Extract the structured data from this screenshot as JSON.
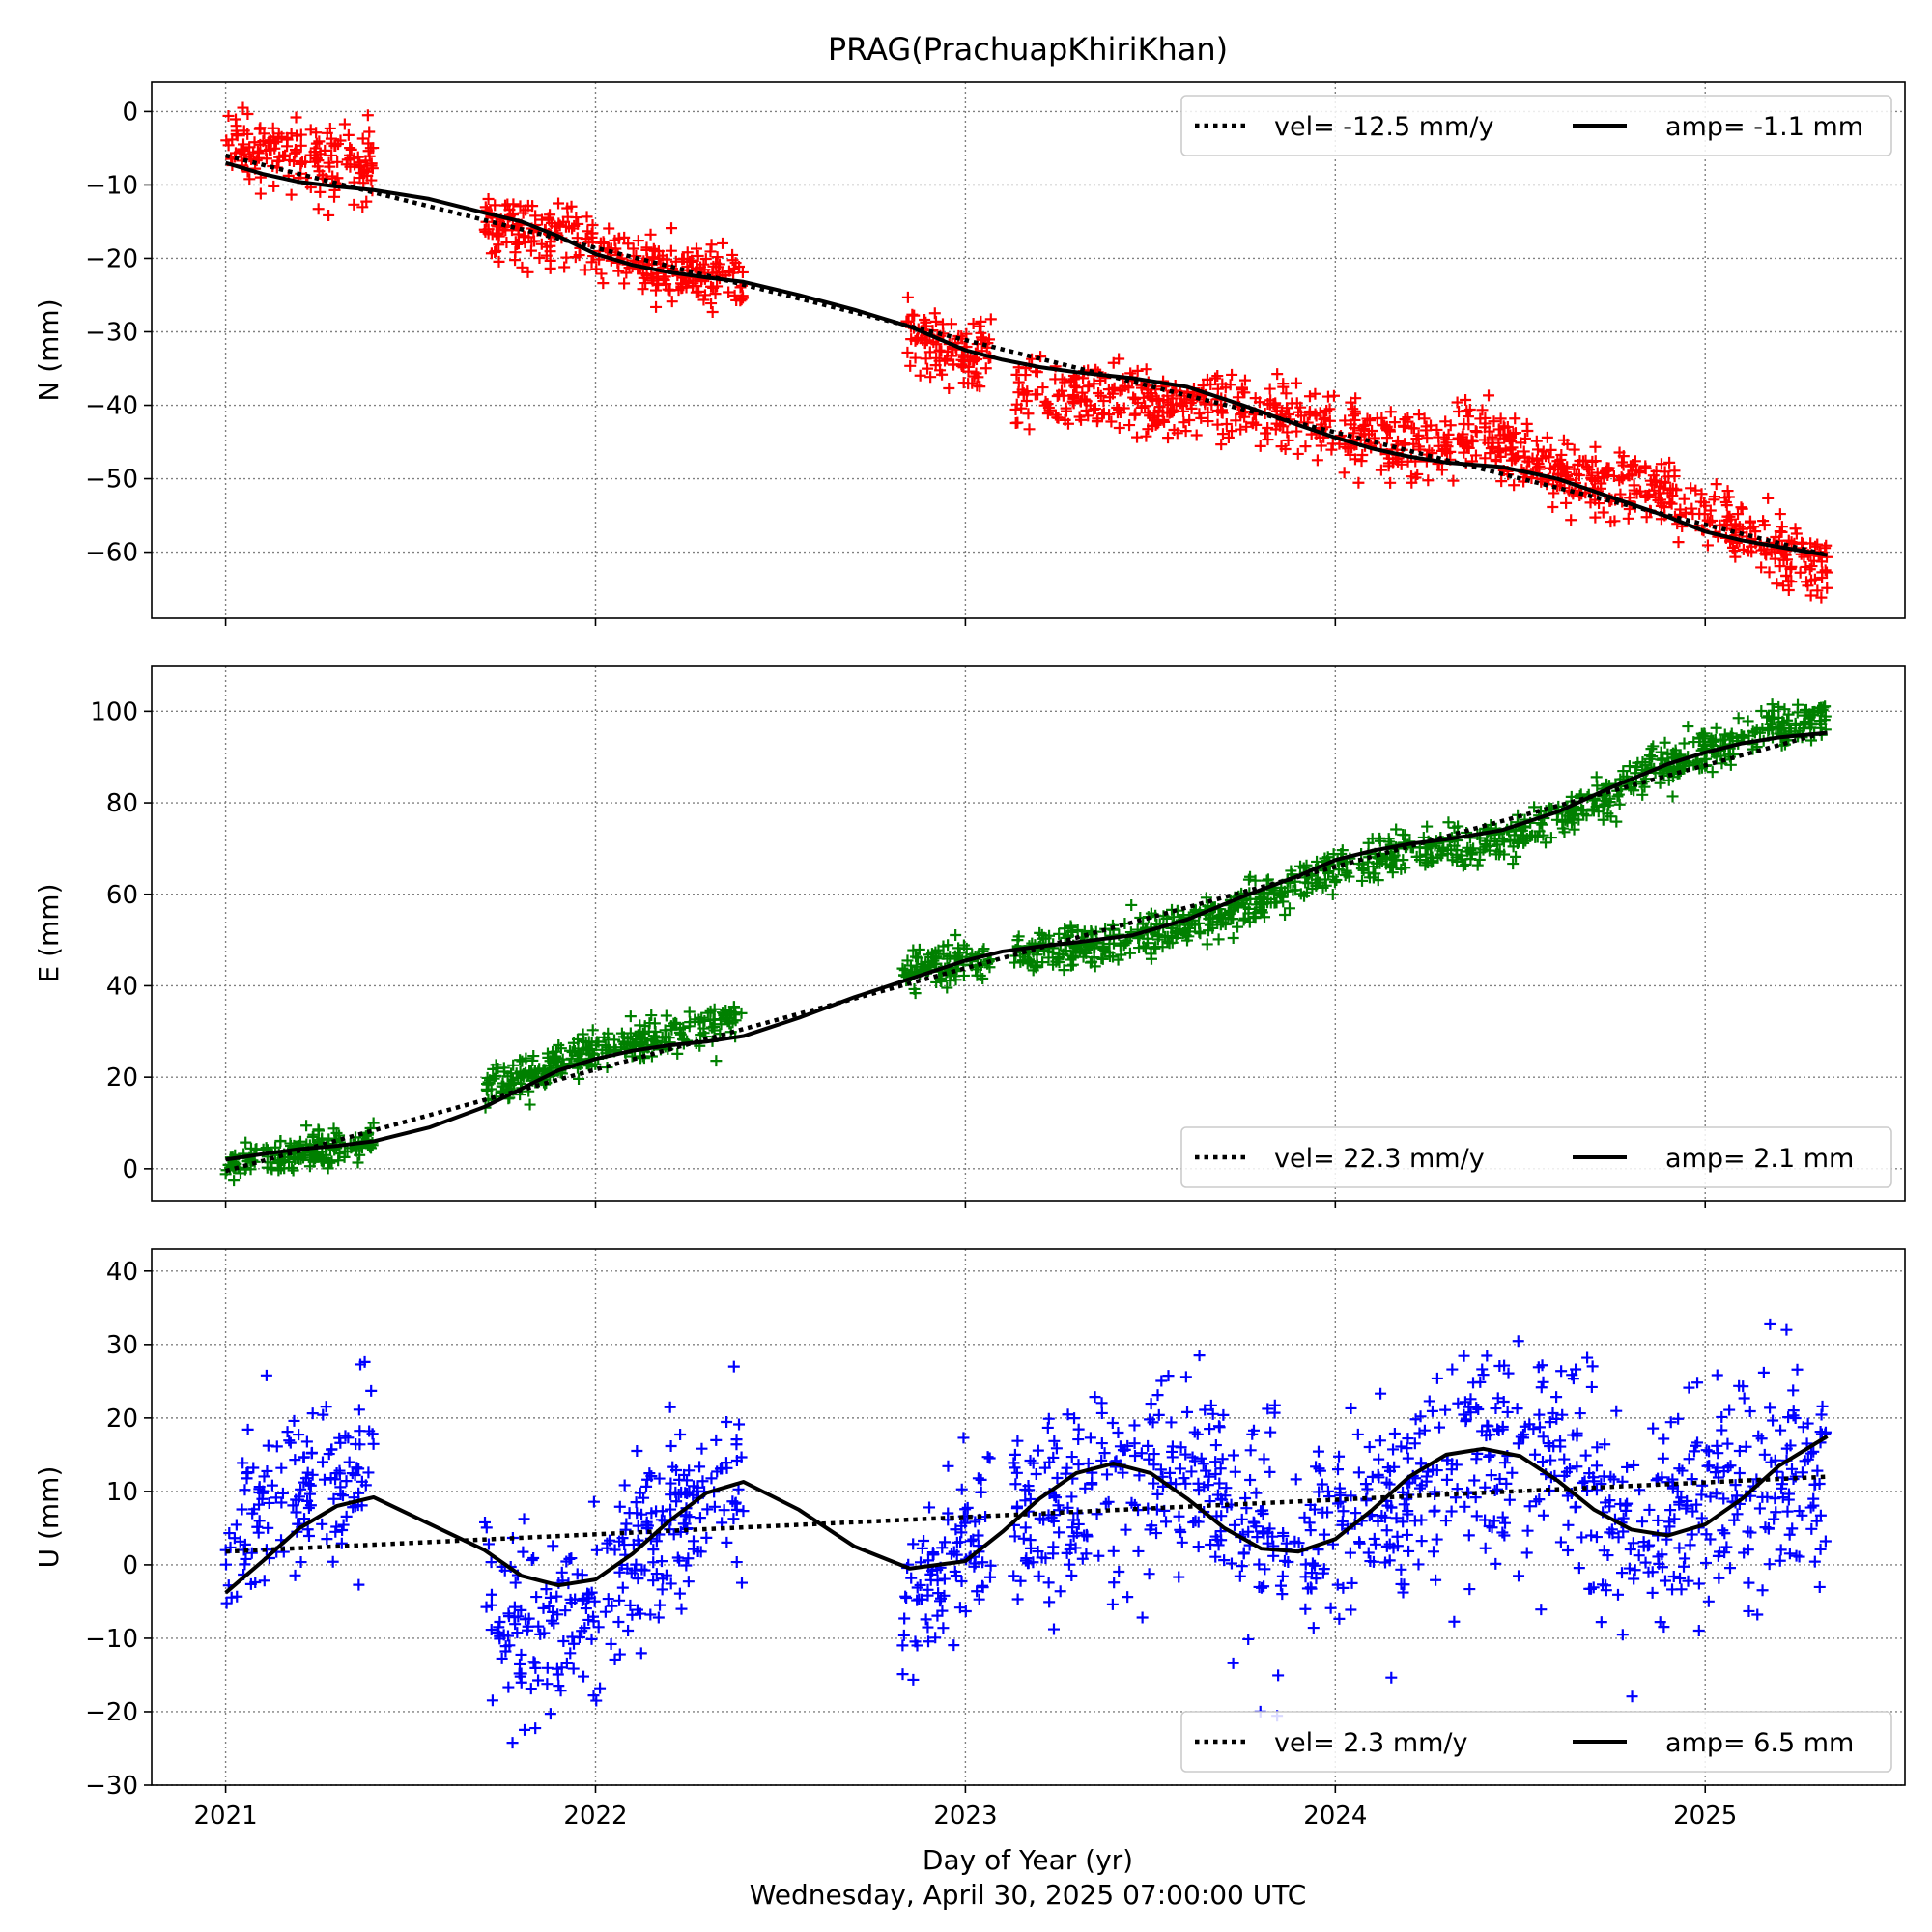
{
  "title": "PRAG(PrachuapKhiriKhan)",
  "xlabel": "Day of Year (yr)",
  "footer": "Wednesday, April 30, 2025 07:00:00 UTC",
  "x_ticks": [
    "2021",
    "2022",
    "2023",
    "2024",
    "2025"
  ],
  "chart_data": [
    {
      "type": "scatter",
      "ylabel": "N (mm)",
      "xlim": [
        2020.8,
        2025.54
      ],
      "ylim": [
        -69,
        4
      ],
      "yticks": [
        0,
        -10,
        -20,
        -30,
        -40,
        -50,
        -60
      ],
      "ytick_labels": [
        "0",
        "−10",
        "−20",
        "−30",
        "−40",
        "−50",
        "−60"
      ],
      "marker_color": "#ff0000",
      "legend": {
        "vel": "vel= -12.5 mm/y",
        "amp": "amp= -1.1 mm",
        "position": "upper right"
      },
      "vel_line": [
        [
          2021.0,
          -6.0
        ],
        [
          2025.33,
          -60.4
        ]
      ],
      "fit_line": [
        [
          2021.0,
          -7.0
        ],
        [
          2021.1,
          -8.5
        ],
        [
          2021.2,
          -9.6
        ],
        [
          2021.3,
          -10.2
        ],
        [
          2021.4,
          -10.7
        ],
        [
          2021.55,
          -11.9
        ],
        [
          2021.7,
          -13.8
        ],
        [
          2021.8,
          -15.0
        ],
        [
          2021.9,
          -17.0
        ],
        [
          2022.0,
          -19.4
        ],
        [
          2022.1,
          -20.9
        ],
        [
          2022.2,
          -21.9
        ],
        [
          2022.3,
          -22.6
        ],
        [
          2022.4,
          -23.2
        ],
        [
          2022.55,
          -25.0
        ],
        [
          2022.7,
          -27.0
        ],
        [
          2022.85,
          -29.3
        ],
        [
          2023.0,
          -32.5
        ],
        [
          2023.1,
          -33.8
        ],
        [
          2023.2,
          -34.8
        ],
        [
          2023.3,
          -35.5
        ],
        [
          2023.45,
          -36.3
        ],
        [
          2023.6,
          -37.5
        ],
        [
          2023.75,
          -40.0
        ],
        [
          2023.9,
          -42.7
        ],
        [
          2024.0,
          -44.4
        ],
        [
          2024.1,
          -45.9
        ],
        [
          2024.2,
          -47.0
        ],
        [
          2024.3,
          -47.8
        ],
        [
          2024.45,
          -48.4
        ],
        [
          2024.6,
          -50.0
        ],
        [
          2024.75,
          -52.6
        ],
        [
          2024.9,
          -55.2
        ],
        [
          2025.0,
          -57.2
        ],
        [
          2025.1,
          -58.4
        ],
        [
          2025.2,
          -59.3
        ],
        [
          2025.33,
          -60.4
        ]
      ],
      "scatter_segments": [
        {
          "x_range": [
            2021.0,
            2021.4
          ],
          "trend": [
            [
              2021.0,
              -4.0
            ],
            [
              2021.2,
              -6.5
            ],
            [
              2021.4,
              -7.5
            ]
          ],
          "spread": 2.5,
          "count": 170
        },
        {
          "x_range": [
            2021.7,
            2022.4
          ],
          "trend": [
            [
              2021.7,
              -15.0
            ],
            [
              2022.0,
              -18.5
            ],
            [
              2022.2,
              -22.0
            ],
            [
              2022.4,
              -23.0
            ]
          ],
          "spread": 2.2,
          "count": 300
        },
        {
          "x_range": [
            2022.83,
            2023.07
          ],
          "trend": [
            [
              2022.83,
              -30.0
            ],
            [
              2023.0,
              -33.5
            ],
            [
              2023.07,
              -33.0
            ]
          ],
          "spread": 2.2,
          "count": 110
        },
        {
          "x_range": [
            2023.13,
            2025.33
          ],
          "trend": [
            [
              2023.13,
              -38.0
            ],
            [
              2023.5,
              -39.5
            ],
            [
              2023.8,
              -40.5
            ],
            [
              2024.0,
              -43.5
            ],
            [
              2024.2,
              -46.0
            ],
            [
              2024.4,
              -44.0
            ],
            [
              2024.6,
              -49.5
            ],
            [
              2024.9,
              -52.0
            ],
            [
              2025.1,
              -57.0
            ],
            [
              2025.33,
              -62.5
            ]
          ],
          "spread": 2.3,
          "count": 900
        }
      ]
    },
    {
      "type": "scatter",
      "ylabel": "E (mm)",
      "xlim": [
        2020.8,
        2025.54
      ],
      "ylim": [
        -7,
        110
      ],
      "yticks": [
        0,
        20,
        40,
        60,
        80,
        100
      ],
      "ytick_labels": [
        "0",
        "20",
        "40",
        "60",
        "80",
        "100"
      ],
      "marker_color": "#008000",
      "legend": {
        "vel": "vel= 22.3 mm/y",
        "amp": "amp= 2.1 mm",
        "position": "lower right"
      },
      "vel_line": [
        [
          2021.0,
          -0.5
        ],
        [
          2025.33,
          95.5
        ]
      ],
      "fit_line": [
        [
          2021.0,
          2.0
        ],
        [
          2021.1,
          3.2
        ],
        [
          2021.2,
          4.3
        ],
        [
          2021.3,
          5.0
        ],
        [
          2021.4,
          6.0
        ],
        [
          2021.55,
          9.0
        ],
        [
          2021.7,
          13.5
        ],
        [
          2021.8,
          17.5
        ],
        [
          2021.9,
          21.5
        ],
        [
          2022.0,
          24.0
        ],
        [
          2022.1,
          25.8
        ],
        [
          2022.2,
          27.0
        ],
        [
          2022.3,
          27.8
        ],
        [
          2022.4,
          29.0
        ],
        [
          2022.55,
          33.0
        ],
        [
          2022.7,
          37.5
        ],
        [
          2022.85,
          41.5
        ],
        [
          2023.0,
          45.5
        ],
        [
          2023.1,
          47.5
        ],
        [
          2023.2,
          48.6
        ],
        [
          2023.3,
          49.5
        ],
        [
          2023.45,
          51.0
        ],
        [
          2023.6,
          54.5
        ],
        [
          2023.75,
          59.5
        ],
        [
          2023.9,
          64.0
        ],
        [
          2024.0,
          67.5
        ],
        [
          2024.1,
          69.5
        ],
        [
          2024.2,
          71.0
        ],
        [
          2024.3,
          72.0
        ],
        [
          2024.45,
          74.0
        ],
        [
          2024.6,
          78.0
        ],
        [
          2024.75,
          83.5
        ],
        [
          2024.9,
          88.5
        ],
        [
          2025.0,
          91.0
        ],
        [
          2025.1,
          93.0
        ],
        [
          2025.2,
          94.3
        ],
        [
          2025.33,
          95.3
        ]
      ],
      "scatter_segments": [
        {
          "x_range": [
            2021.0,
            2021.4
          ],
          "trend": [
            [
              2021.0,
              1.0
            ],
            [
              2021.2,
              3.5
            ],
            [
              2021.4,
              6.0
            ]
          ],
          "spread": 1.8,
          "count": 170
        },
        {
          "x_range": [
            2021.7,
            2022.4
          ],
          "trend": [
            [
              2021.7,
              17.0
            ],
            [
              2022.0,
              26.0
            ],
            [
              2022.2,
              29.0
            ],
            [
              2022.4,
              33.0
            ]
          ],
          "spread": 2.2,
          "count": 300
        },
        {
          "x_range": [
            2022.83,
            2023.07
          ],
          "trend": [
            [
              2022.83,
              43.0
            ],
            [
              2023.07,
              46.0
            ]
          ],
          "spread": 2.0,
          "count": 110
        },
        {
          "x_range": [
            2023.13,
            2025.33
          ],
          "trend": [
            [
              2023.13,
              46.5
            ],
            [
              2023.5,
              50.5
            ],
            [
              2023.8,
              59.0
            ],
            [
              2024.0,
              65.0
            ],
            [
              2024.2,
              69.5
            ],
            [
              2024.5,
              73.0
            ],
            [
              2024.7,
              80.0
            ],
            [
              2024.9,
              88.0
            ],
            [
              2025.1,
              94.0
            ],
            [
              2025.33,
              99.5
            ]
          ],
          "spread": 2.4,
          "count": 900
        }
      ]
    },
    {
      "type": "scatter",
      "ylabel": "U (mm)",
      "xlim": [
        2020.8,
        2025.54
      ],
      "ylim": [
        -30,
        43
      ],
      "yticks": [
        40,
        30,
        20,
        10,
        0,
        -10,
        -20,
        -30
      ],
      "ytick_labels": [
        "40",
        "30",
        "20",
        "10",
        "0",
        "−10",
        "−20",
        "−30"
      ],
      "marker_color": "#0000ff",
      "legend": {
        "vel": "vel= 2.3 mm/y",
        "amp": "amp= 6.5 mm",
        "position": "lower right"
      },
      "vel_line": [
        [
          2021.0,
          1.8
        ],
        [
          2025.33,
          12.0
        ]
      ],
      "fit_line": [
        [
          2021.0,
          -3.8
        ],
        [
          2021.1,
          0.5
        ],
        [
          2021.2,
          5.0
        ],
        [
          2021.3,
          8.0
        ],
        [
          2021.4,
          9.2
        ],
        [
          2021.7,
          2.0
        ],
        [
          2021.8,
          -1.5
        ],
        [
          2021.9,
          -2.8
        ],
        [
          2022.0,
          -2.0
        ],
        [
          2022.1,
          1.5
        ],
        [
          2022.2,
          6.0
        ],
        [
          2022.3,
          9.8
        ],
        [
          2022.4,
          11.3
        ],
        [
          2022.55,
          7.5
        ],
        [
          2022.7,
          2.5
        ],
        [
          2022.85,
          -0.5
        ],
        [
          2023.0,
          0.5
        ],
        [
          2023.1,
          4.5
        ],
        [
          2023.2,
          9.0
        ],
        [
          2023.3,
          12.5
        ],
        [
          2023.4,
          13.8
        ],
        [
          2023.5,
          12.5
        ],
        [
          2023.6,
          9.0
        ],
        [
          2023.7,
          5.0
        ],
        [
          2023.8,
          2.2
        ],
        [
          2023.9,
          1.8
        ],
        [
          2024.0,
          3.5
        ],
        [
          2024.1,
          7.5
        ],
        [
          2024.2,
          12.0
        ],
        [
          2024.3,
          15.0
        ],
        [
          2024.4,
          15.8
        ],
        [
          2024.5,
          14.8
        ],
        [
          2024.6,
          11.5
        ],
        [
          2024.7,
          7.5
        ],
        [
          2024.8,
          4.8
        ],
        [
          2024.9,
          4.0
        ],
        [
          2025.0,
          5.5
        ],
        [
          2025.1,
          9.0
        ],
        [
          2025.2,
          13.5
        ],
        [
          2025.33,
          17.5
        ]
      ],
      "scatter_segments": [
        {
          "x_range": [
            2021.0,
            2021.4
          ],
          "trend": [
            [
              2021.0,
              4.0
            ],
            [
              2021.2,
              11.0
            ],
            [
              2021.4,
              14.0
            ]
          ],
          "spread": 6.0,
          "count": 150
        },
        {
          "x_range": [
            2021.7,
            2022.4
          ],
          "trend": [
            [
              2021.7,
              -5.0
            ],
            [
              2021.9,
              -9.0
            ],
            [
              2022.1,
              1.0
            ],
            [
              2022.3,
              8.0
            ],
            [
              2022.4,
              12.0
            ]
          ],
          "spread": 6.0,
          "count": 280
        },
        {
          "x_range": [
            2022.83,
            2023.07
          ],
          "trend": [
            [
              2022.83,
              -5.0
            ],
            [
              2023.0,
              0.0
            ],
            [
              2023.07,
              3.0
            ]
          ],
          "spread": 5.5,
          "count": 100
        },
        {
          "x_range": [
            2023.13,
            2025.33
          ],
          "trend": [
            [
              2023.13,
              5.0
            ],
            [
              2023.4,
              10.0
            ],
            [
              2023.6,
              12.0
            ],
            [
              2023.9,
              3.0
            ],
            [
              2024.1,
              9.0
            ],
            [
              2024.4,
              15.0
            ],
            [
              2024.6,
              12.0
            ],
            [
              2024.8,
              4.0
            ],
            [
              2025.0,
              8.0
            ],
            [
              2025.33,
              14.0
            ]
          ],
          "spread": 7.5,
          "count": 850
        }
      ]
    }
  ]
}
